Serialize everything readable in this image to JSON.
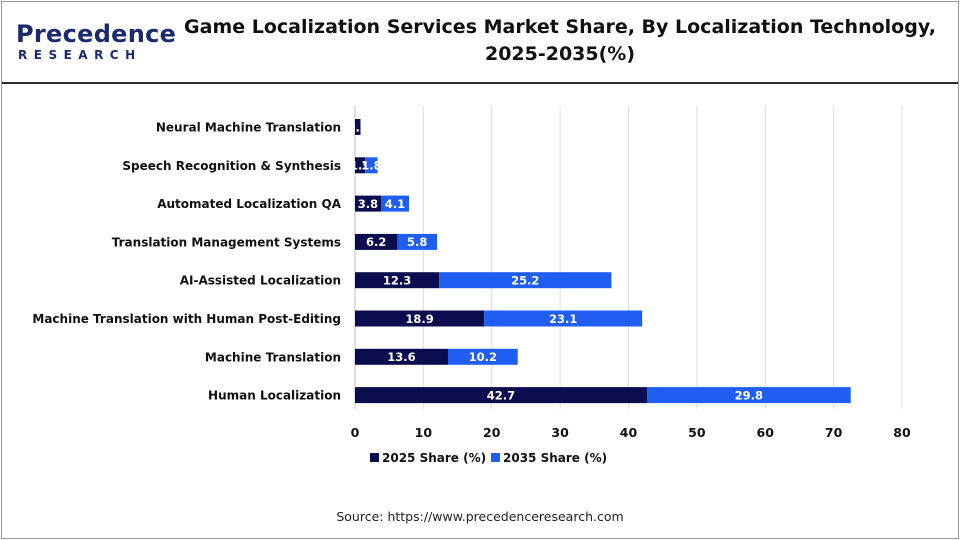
{
  "header": {
    "logo_text": "Precedence",
    "logo_sub": "RESEARCH",
    "title_line1": "Game Localization Services Market Share, By Localization Technology,",
    "title_line2": "2025-2035(%)"
  },
  "source": "Source: https://www.precedenceresearch.com",
  "colors": {
    "series_2025": "#0b0d4f",
    "series_2035": "#1f5ef0",
    "grid": "#dcdcdc"
  },
  "chart_data": {
    "type": "bar",
    "orientation": "horizontal",
    "stacked": true,
    "categories": [
      "Neural Machine Translation",
      "Speech Recognition & Synthesis",
      "Automated Localization QA",
      "Translation Management Systems",
      "AI-Assisted Localization",
      "Machine Translation with Human Post-Editing",
      "Machine Translation",
      "Human Localization"
    ],
    "series": [
      {
        "name": "2025 Share (%)",
        "values": [
          0.8,
          1.5,
          3.8,
          6.2,
          12.3,
          18.9,
          13.6,
          42.7
        ]
      },
      {
        "name": "2035 Share (%)",
        "values": [
          0.0,
          1.8,
          4.1,
          5.8,
          25.2,
          23.1,
          10.2,
          29.8
        ]
      }
    ],
    "data_labels": [
      [
        "0.8",
        "1.5",
        "3.8",
        "6.2",
        "12.3",
        "18.9",
        "13.6",
        "42.7"
      ],
      [
        "",
        "1.8",
        "4.1",
        "5.8",
        "25.2",
        "23.1",
        "10.2",
        "29.8"
      ]
    ],
    "xlim": [
      0,
      80
    ],
    "xticks": [
      0,
      10,
      20,
      30,
      40,
      50,
      60,
      70,
      80
    ],
    "grid": true,
    "legend": "bottom-center"
  }
}
